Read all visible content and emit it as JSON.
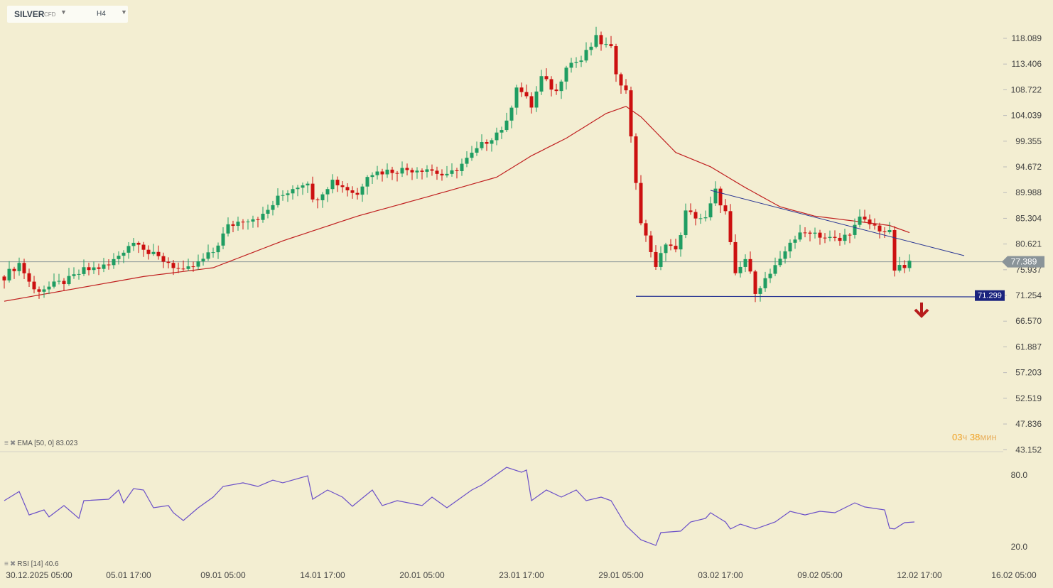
{
  "header": {
    "symbol": "SILVER",
    "type": "CFD",
    "timeframe": "H4"
  },
  "indicators": {
    "ema_label": "EMA [50, 0] 83.023",
    "rsi_label": "RSI [14] 40.6"
  },
  "timer": {
    "hours": "03",
    "hours_unit": "ч",
    "minutes": "38",
    "minutes_unit": "мин"
  },
  "colors": {
    "up": "#1f9d62",
    "down": "#cc1010",
    "ema": "#c02020",
    "rsi": "#6a4fc8",
    "trend": "#283593",
    "bg": "#f3eed2"
  },
  "chart_data": {
    "type": "candlestick",
    "bars": 183,
    "yaxis_ticks": [
      "118.089",
      "113.406",
      "108.722",
      "104.039",
      "99.355",
      "94.672",
      "89.988",
      "85.304",
      "80.621",
      "75.937",
      "71.254",
      "66.570",
      "61.887",
      "57.203",
      "52.519",
      "47.836",
      "43.152"
    ],
    "ylim": [
      43.152,
      118.089
    ],
    "current_price": "77.389",
    "support_level": "71.299",
    "x_ticks": [
      {
        "bar": 7,
        "label": "30.12.2025  05:00"
      },
      {
        "bar": 25,
        "label": "05.01  17:00"
      },
      {
        "bar": 44,
        "label": "09.01  05:00"
      },
      {
        "bar": 64,
        "label": "14.01  17:00"
      },
      {
        "bar": 84,
        "label": "20.01  05:00"
      },
      {
        "bar": 104,
        "label": "23.01  17:00"
      },
      {
        "bar": 124,
        "label": "29.01  05:00"
      },
      {
        "bar": 144,
        "label": "03.02  17:00"
      },
      {
        "bar": 164,
        "label": "09.02  05:00"
      },
      {
        "bar": 184,
        "label": "12.02  17:00"
      },
      {
        "bar": 203,
        "label": "16.02  05:00"
      }
    ],
    "price_path": [
      [
        0,
        74.7
      ],
      [
        3,
        77.1
      ],
      [
        6,
        72.2
      ],
      [
        9,
        72.8
      ],
      [
        13,
        74.1
      ],
      [
        16,
        75.8
      ],
      [
        21,
        76.7
      ],
      [
        25,
        80.5
      ],
      [
        27,
        81.2
      ],
      [
        29,
        78.9
      ],
      [
        33,
        77.3
      ],
      [
        36,
        75.4
      ],
      [
        39,
        77.1
      ],
      [
        42,
        79.2
      ],
      [
        45,
        83.8
      ],
      [
        48,
        85.1
      ],
      [
        52,
        85.7
      ],
      [
        55,
        88.9
      ],
      [
        58,
        90.9
      ],
      [
        61,
        92.2
      ],
      [
        62,
        88.3
      ],
      [
        66,
        92.2
      ],
      [
        71,
        89.6
      ],
      [
        73,
        93.5
      ],
      [
        79,
        94.1
      ],
      [
        85,
        94.4
      ],
      [
        89,
        92.8
      ],
      [
        93,
        96.0
      ],
      [
        96,
        98.6
      ],
      [
        101,
        102.5
      ],
      [
        103,
        109.6
      ],
      [
        106,
        105.7
      ],
      [
        108,
        110.9
      ],
      [
        111,
        108.3
      ],
      [
        113,
        113.4
      ],
      [
        116,
        114.1
      ],
      [
        119,
        118.0
      ],
      [
        122,
        116.0
      ],
      [
        123,
        112.1
      ],
      [
        125,
        108.3
      ],
      [
        126,
        100.5
      ],
      [
        128,
        83.8
      ],
      [
        129,
        82.5
      ],
      [
        131,
        76.0
      ],
      [
        133,
        81.2
      ],
      [
        135,
        79.2
      ],
      [
        137,
        86.3
      ],
      [
        141,
        85.1
      ],
      [
        143,
        90.2
      ],
      [
        145,
        86.3
      ],
      [
        147,
        74.7
      ],
      [
        149,
        77.9
      ],
      [
        151,
        72.2
      ],
      [
        153,
        74.1
      ],
      [
        156,
        77.3
      ],
      [
        158,
        81.2
      ],
      [
        162,
        83.1
      ],
      [
        165,
        81.8
      ],
      [
        168,
        81.2
      ],
      [
        171,
        83.8
      ],
      [
        172,
        85.1
      ],
      [
        175,
        83.8
      ],
      [
        178,
        82.5
      ],
      [
        179,
        76.0
      ],
      [
        181,
        76.3
      ],
      [
        182,
        77.3
      ]
    ],
    "ema50": [
      [
        0,
        70.2
      ],
      [
        28,
        74.7
      ],
      [
        42,
        76.3
      ],
      [
        56,
        81.2
      ],
      [
        71,
        85.7
      ],
      [
        85,
        89.2
      ],
      [
        99,
        92.8
      ],
      [
        106,
        96.7
      ],
      [
        113,
        99.9
      ],
      [
        121,
        104.4
      ],
      [
        125,
        105.7
      ],
      [
        128,
        103.8
      ],
      [
        135,
        97.3
      ],
      [
        142,
        94.7
      ],
      [
        149,
        90.9
      ],
      [
        156,
        87.4
      ],
      [
        163,
        85.7
      ],
      [
        171,
        84.8
      ],
      [
        178,
        84.0
      ],
      [
        182,
        82.7
      ]
    ],
    "trendline": [
      [
        142,
        90.4
      ],
      [
        193,
        78.5
      ]
    ],
    "support_line": [
      [
        127,
        71.1
      ],
      [
        195,
        71.0
      ]
    ],
    "rsi": {
      "ticks": [
        "80.0",
        "20.0"
      ],
      "path": [
        [
          0,
          58.6
        ],
        [
          3,
          66.3
        ],
        [
          5,
          46.7
        ],
        [
          8,
          50.9
        ],
        [
          9,
          45.0
        ],
        [
          12,
          54.5
        ],
        [
          15,
          43.8
        ],
        [
          16,
          58.6
        ],
        [
          21,
          59.8
        ],
        [
          23,
          67.5
        ],
        [
          24,
          56.8
        ],
        [
          26,
          68.7
        ],
        [
          28,
          67.5
        ],
        [
          30,
          52.7
        ],
        [
          33,
          54.5
        ],
        [
          34,
          48.5
        ],
        [
          36,
          42.0
        ],
        [
          39,
          52.7
        ],
        [
          42,
          61.6
        ],
        [
          44,
          70.5
        ],
        [
          48,
          73.5
        ],
        [
          51,
          70.5
        ],
        [
          54,
          75.8
        ],
        [
          56,
          73.5
        ],
        [
          61,
          79.4
        ],
        [
          62,
          59.8
        ],
        [
          65,
          67.5
        ],
        [
          68,
          61.6
        ],
        [
          70,
          53.9
        ],
        [
          74,
          67.5
        ],
        [
          76,
          54.5
        ],
        [
          79,
          58.6
        ],
        [
          84,
          54.5
        ],
        [
          86,
          61.6
        ],
        [
          89,
          52.7
        ],
        [
          94,
          67.5
        ],
        [
          96,
          71.7
        ],
        [
          101,
          86.5
        ],
        [
          104,
          82.4
        ],
        [
          105,
          84.2
        ],
        [
          106,
          58.6
        ],
        [
          109,
          67.5
        ],
        [
          112,
          61.6
        ],
        [
          115,
          67.5
        ],
        [
          117,
          58.6
        ],
        [
          120,
          61.6
        ],
        [
          122,
          58.6
        ],
        [
          125,
          37.8
        ],
        [
          128,
          25.9
        ],
        [
          131,
          21.2
        ],
        [
          132,
          31.9
        ],
        [
          136,
          33.1
        ],
        [
          138,
          40.8
        ],
        [
          141,
          43.8
        ],
        [
          142,
          48.5
        ],
        [
          145,
          40.8
        ],
        [
          146,
          34.9
        ],
        [
          148,
          39.0
        ],
        [
          151,
          34.9
        ],
        [
          155,
          40.8
        ],
        [
          158,
          49.7
        ],
        [
          161,
          46.7
        ],
        [
          164,
          49.7
        ],
        [
          167,
          48.5
        ],
        [
          171,
          56.8
        ],
        [
          173,
          53.3
        ],
        [
          177,
          50.9
        ],
        [
          178,
          35.5
        ],
        [
          179,
          34.9
        ],
        [
          181,
          40.2
        ],
        [
          183,
          40.8
        ]
      ]
    }
  }
}
